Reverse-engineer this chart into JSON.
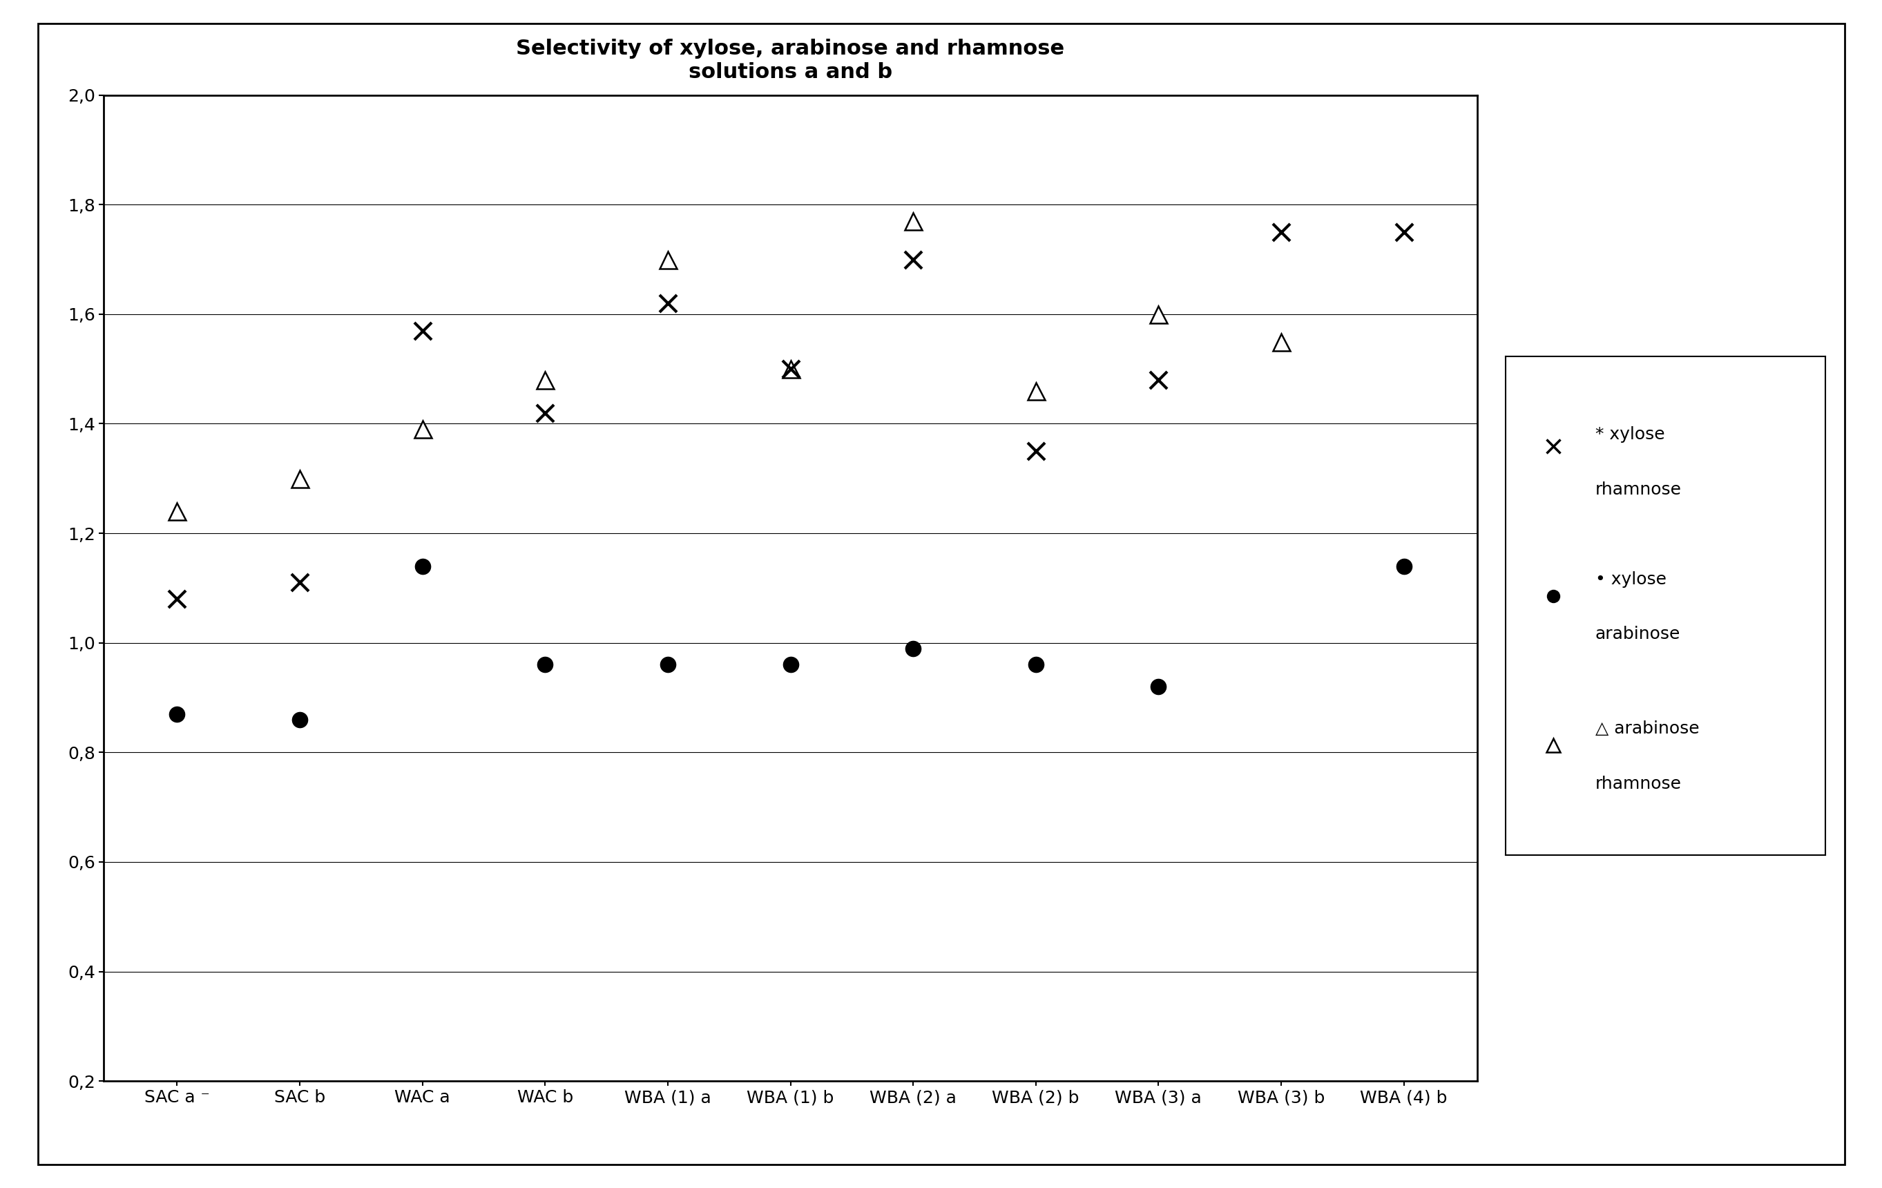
{
  "title": "Selectivity of xylose, arabinose and rhamnose\nsolutions a and b",
  "categories": [
    "SAC a ⁻",
    "SAC b",
    "WAC a",
    "WAC b",
    "WBA (1) a",
    "WBA (1) b",
    "WBA (2) a",
    "WBA (2) b",
    "WBA (3) a",
    "WBA (3) b",
    "WBA (4) b"
  ],
  "xylose_rhamnose": [
    1.08,
    1.11,
    1.57,
    1.42,
    1.62,
    1.5,
    1.7,
    1.35,
    1.48,
    1.75,
    1.75
  ],
  "xylose_arabinose": [
    0.87,
    0.86,
    1.14,
    0.96,
    0.96,
    0.96,
    0.99,
    0.96,
    0.92,
    null,
    1.14
  ],
  "arabinose_rhamnose": [
    1.24,
    1.3,
    1.39,
    1.48,
    1.7,
    1.5,
    1.77,
    1.46,
    1.6,
    1.55,
    null
  ],
  "ylim": [
    0.2,
    2.0
  ],
  "yticks": [
    0.2,
    0.4,
    0.6,
    0.8,
    1.0,
    1.2,
    1.4,
    1.6,
    1.8,
    2.0
  ],
  "background_color": "#ffffff",
  "title_fontsize": 22,
  "tick_fontsize": 18,
  "legend_fontsize": 18,
  "outer_border_color": "#000000",
  "grid_color": "#000000",
  "grid_lw": 0.8
}
